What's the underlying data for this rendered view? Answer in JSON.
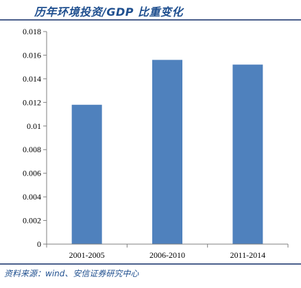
{
  "header": {
    "title": "历年环境投资/GDP 比重变化"
  },
  "footer": {
    "source": "资料来源：wind、安信证券研究中心"
  },
  "colors": {
    "bar": "#4f81bd",
    "axis": "#7f7f7f",
    "text": "#1f4f8f"
  },
  "chart_data": {
    "type": "bar",
    "categories": [
      "2001-2005",
      "2006-2010",
      "2011-2014"
    ],
    "values": [
      0.0118,
      0.0156,
      0.0152
    ],
    "ylim": [
      0,
      0.018
    ],
    "yticks": [
      0,
      0.002,
      0.004,
      0.006,
      0.008,
      0.01,
      0.012,
      0.014,
      0.016,
      0.018
    ],
    "ytick_labels": [
      "0",
      "0.002",
      "0.004",
      "0.006",
      "0.008",
      "0.01",
      "0.012",
      "0.014",
      "0.016",
      "0.018"
    ],
    "grid": false
  }
}
